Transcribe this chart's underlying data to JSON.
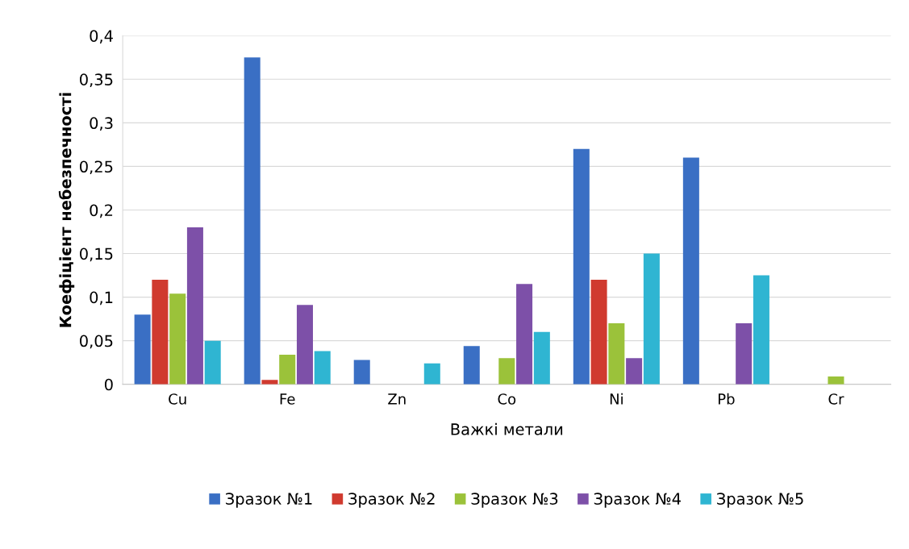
{
  "chart_data": {
    "type": "bar",
    "xlabel": "Важкі метали",
    "ylabel": "Коефіцієнт небезпечності",
    "categories": [
      "Cu",
      "Fe",
      "Zn",
      "Co",
      "Ni",
      "Pb",
      "Cr"
    ],
    "series": [
      {
        "name": "Зразок №1",
        "color": "#3a6fc4",
        "values": [
          0.08,
          0.375,
          0.028,
          0.044,
          0.27,
          0.26,
          null
        ]
      },
      {
        "name": "Зразок №2",
        "color": "#d03a2f",
        "values": [
          0.12,
          0.005,
          null,
          null,
          0.12,
          null,
          null
        ]
      },
      {
        "name": "Зразок №3",
        "color": "#9bc23a",
        "values": [
          0.104,
          0.034,
          null,
          0.03,
          0.07,
          null,
          0.009
        ]
      },
      {
        "name": "Зразок №4",
        "color": "#7d50a8",
        "values": [
          0.18,
          0.091,
          null,
          0.115,
          0.03,
          0.07,
          null
        ]
      },
      {
        "name": "Зразок №5",
        "color": "#2fb5d2",
        "values": [
          0.05,
          0.038,
          0.024,
          0.06,
          0.15,
          0.125,
          null
        ]
      }
    ],
    "ylim": [
      0,
      0.4
    ],
    "yticks": [
      {
        "value": 0,
        "label": "0"
      },
      {
        "value": 0.05,
        "label": "0,05"
      },
      {
        "value": 0.1,
        "label": "0,1"
      },
      {
        "value": 0.15,
        "label": "0,15"
      },
      {
        "value": 0.2,
        "label": "0,2"
      },
      {
        "value": 0.25,
        "label": "0,25"
      },
      {
        "value": 0.3,
        "label": "0,3"
      },
      {
        "value": 0.35,
        "label": "0,35"
      },
      {
        "value": 0.4,
        "label": "0,4"
      }
    ],
    "grid": "y",
    "legend": "bottom"
  }
}
